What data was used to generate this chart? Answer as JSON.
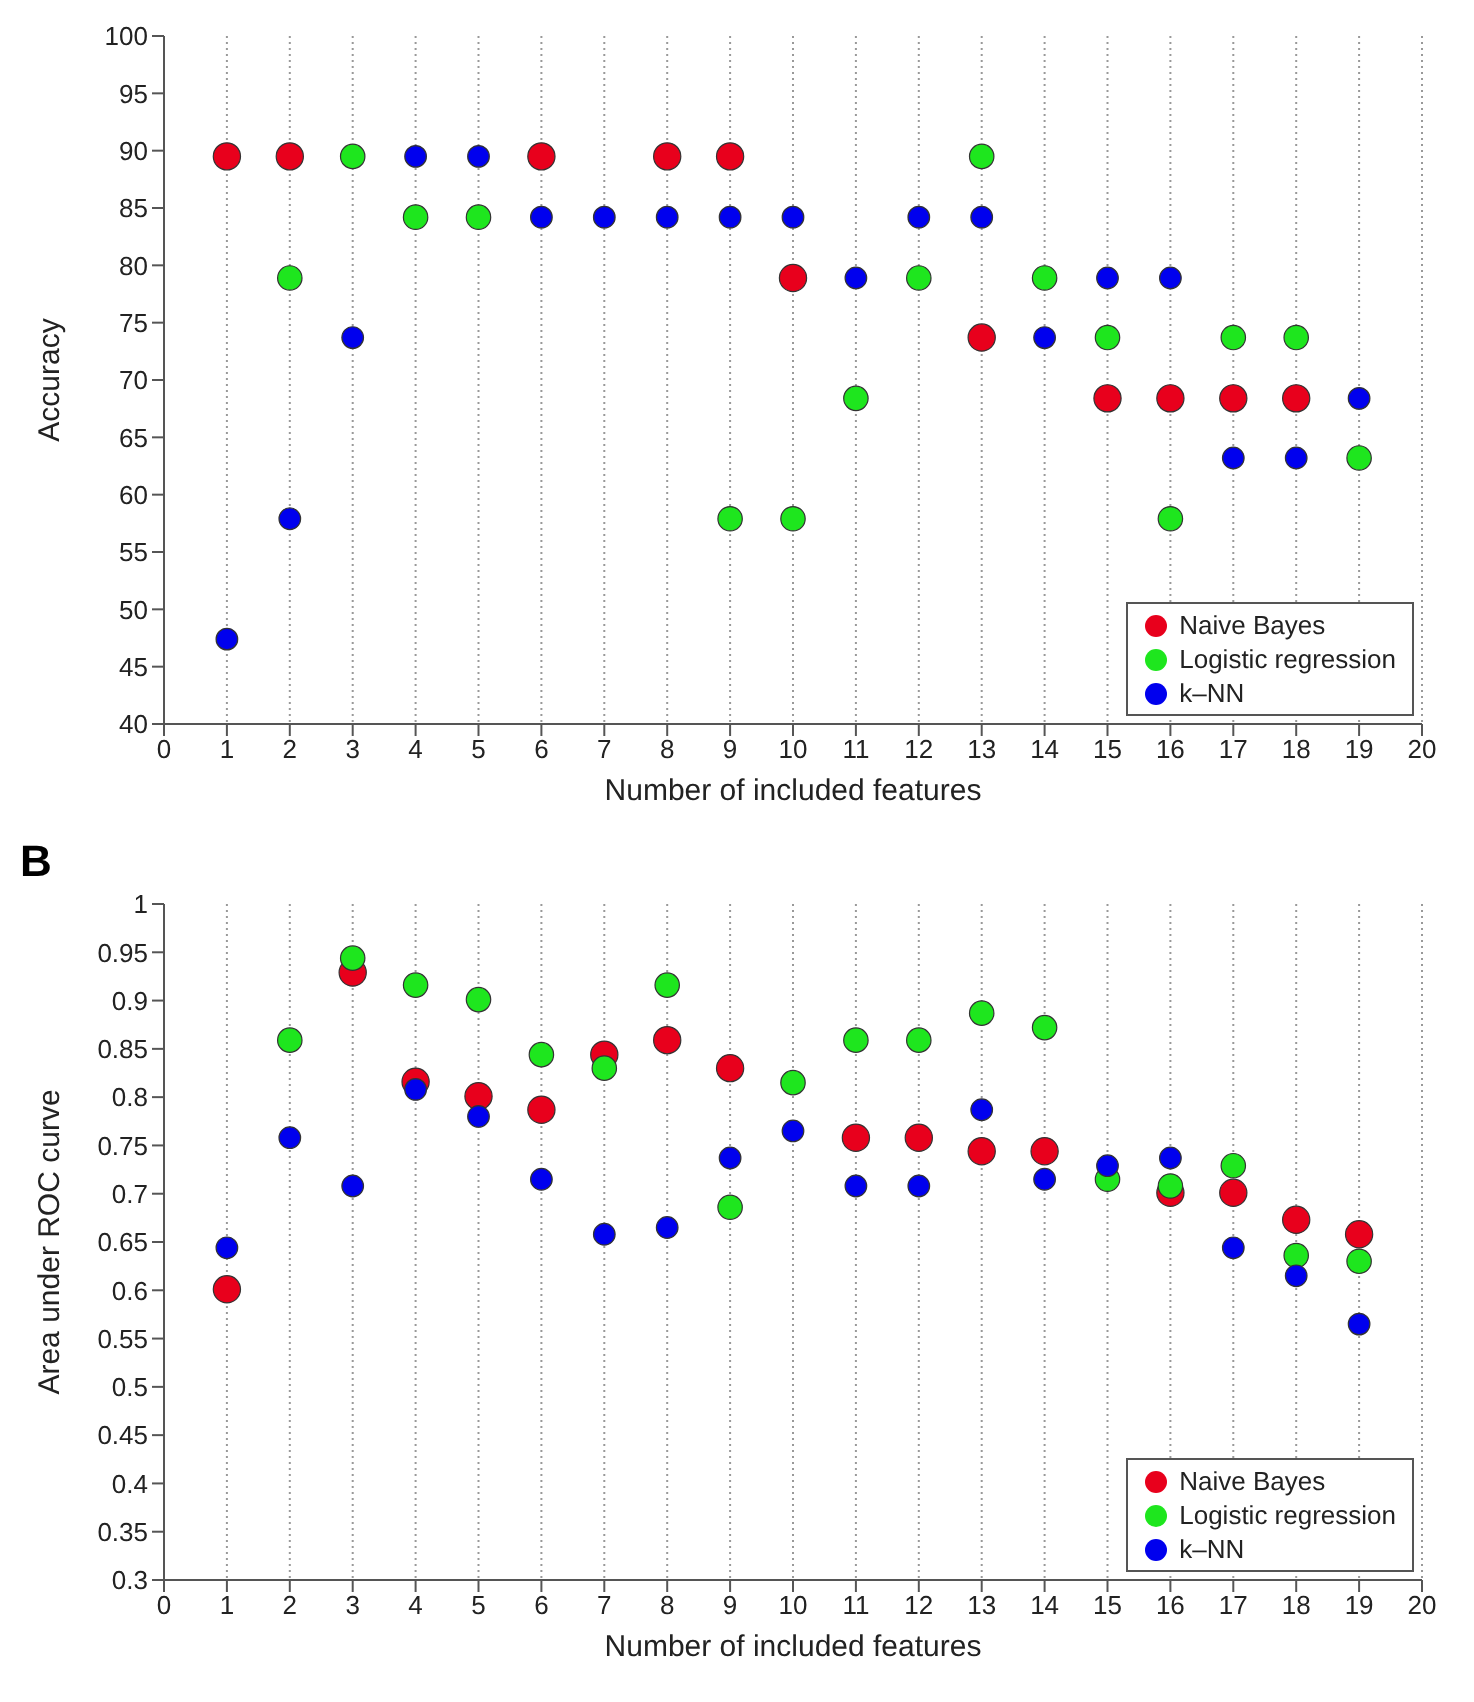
{
  "chart_data": [
    {
      "type": "scatter",
      "xlabel": "Number of included features",
      "ylabel": "Accuracy",
      "x": [
        1,
        2,
        3,
        4,
        5,
        6,
        7,
        8,
        9,
        10,
        11,
        12,
        13,
        14,
        15,
        16,
        17,
        18,
        19
      ],
      "xlim": [
        0,
        20
      ],
      "xticks": [
        0,
        1,
        2,
        3,
        4,
        5,
        6,
        7,
        8,
        9,
        10,
        11,
        12,
        13,
        14,
        15,
        16,
        17,
        18,
        19,
        20
      ],
      "ylim": [
        40,
        100
      ],
      "yticks": [
        40,
        45,
        50,
        55,
        60,
        65,
        70,
        75,
        80,
        85,
        90,
        95,
        100
      ],
      "grid": "x",
      "legend": "bottom right",
      "marker": "circle",
      "series": [
        {
          "name": "Naive Bayes",
          "color": "#e8001c",
          "values": [
            89.5,
            89.5,
            null,
            null,
            null,
            89.5,
            null,
            89.5,
            89.5,
            78.9,
            null,
            null,
            73.7,
            null,
            68.4,
            68.4,
            68.4,
            68.4,
            null
          ]
        },
        {
          "name": "Logistic regression",
          "color": "#1ee61e",
          "values": [
            null,
            78.9,
            89.5,
            84.2,
            84.2,
            null,
            null,
            null,
            57.9,
            57.9,
            68.4,
            78.9,
            89.5,
            78.9,
            73.7,
            57.9,
            73.7,
            73.7,
            63.2
          ]
        },
        {
          "name": "k–NN",
          "color": "#0000ee",
          "values": [
            47.4,
            57.9,
            73.7,
            89.5,
            89.5,
            84.2,
            84.2,
            84.2,
            84.2,
            84.2,
            78.9,
            84.2,
            84.2,
            73.7,
            78.9,
            78.9,
            63.2,
            63.2,
            68.4
          ]
        }
      ]
    },
    {
      "type": "scatter",
      "annotations": [
        "B"
      ],
      "xlabel": "Number of included features",
      "ylabel": "Area under ROC curve",
      "x": [
        1,
        2,
        3,
        4,
        5,
        6,
        7,
        8,
        9,
        10,
        11,
        12,
        13,
        14,
        15,
        16,
        17,
        18,
        19
      ],
      "xlim": [
        0,
        20
      ],
      "xticks": [
        0,
        1,
        2,
        3,
        4,
        5,
        6,
        7,
        8,
        9,
        10,
        11,
        12,
        13,
        14,
        15,
        16,
        17,
        18,
        19,
        20
      ],
      "ylim": [
        0.3,
        1
      ],
      "yticks": [
        0.3,
        0.35,
        0.4,
        0.45,
        0.5,
        0.55,
        0.6,
        0.65,
        0.7,
        0.75,
        0.8,
        0.85,
        0.9,
        0.95,
        1
      ],
      "grid": "x",
      "legend": "bottom right",
      "marker": "circle",
      "series": [
        {
          "name": "Naive Bayes",
          "color": "#e8001c",
          "values": [
            0.601,
            null,
            0.929,
            0.816,
            0.801,
            0.787,
            0.844,
            0.859,
            0.83,
            null,
            0.758,
            0.758,
            0.744,
            0.744,
            null,
            0.701,
            0.701,
            0.673,
            0.658
          ]
        },
        {
          "name": "Logistic regression",
          "color": "#1ee61e",
          "values": [
            null,
            0.859,
            0.944,
            0.916,
            0.901,
            0.844,
            0.83,
            0.916,
            0.686,
            0.815,
            0.859,
            0.859,
            0.887,
            0.872,
            0.715,
            0.708,
            0.729,
            0.636,
            0.63
          ]
        },
        {
          "name": "k–NN",
          "color": "#0000ee",
          "values": [
            0.644,
            0.758,
            0.708,
            0.808,
            0.78,
            0.715,
            0.658,
            0.665,
            0.737,
            0.765,
            0.708,
            0.708,
            0.787,
            0.715,
            0.729,
            0.737,
            0.644,
            0.615,
            0.565
          ]
        }
      ]
    }
  ]
}
